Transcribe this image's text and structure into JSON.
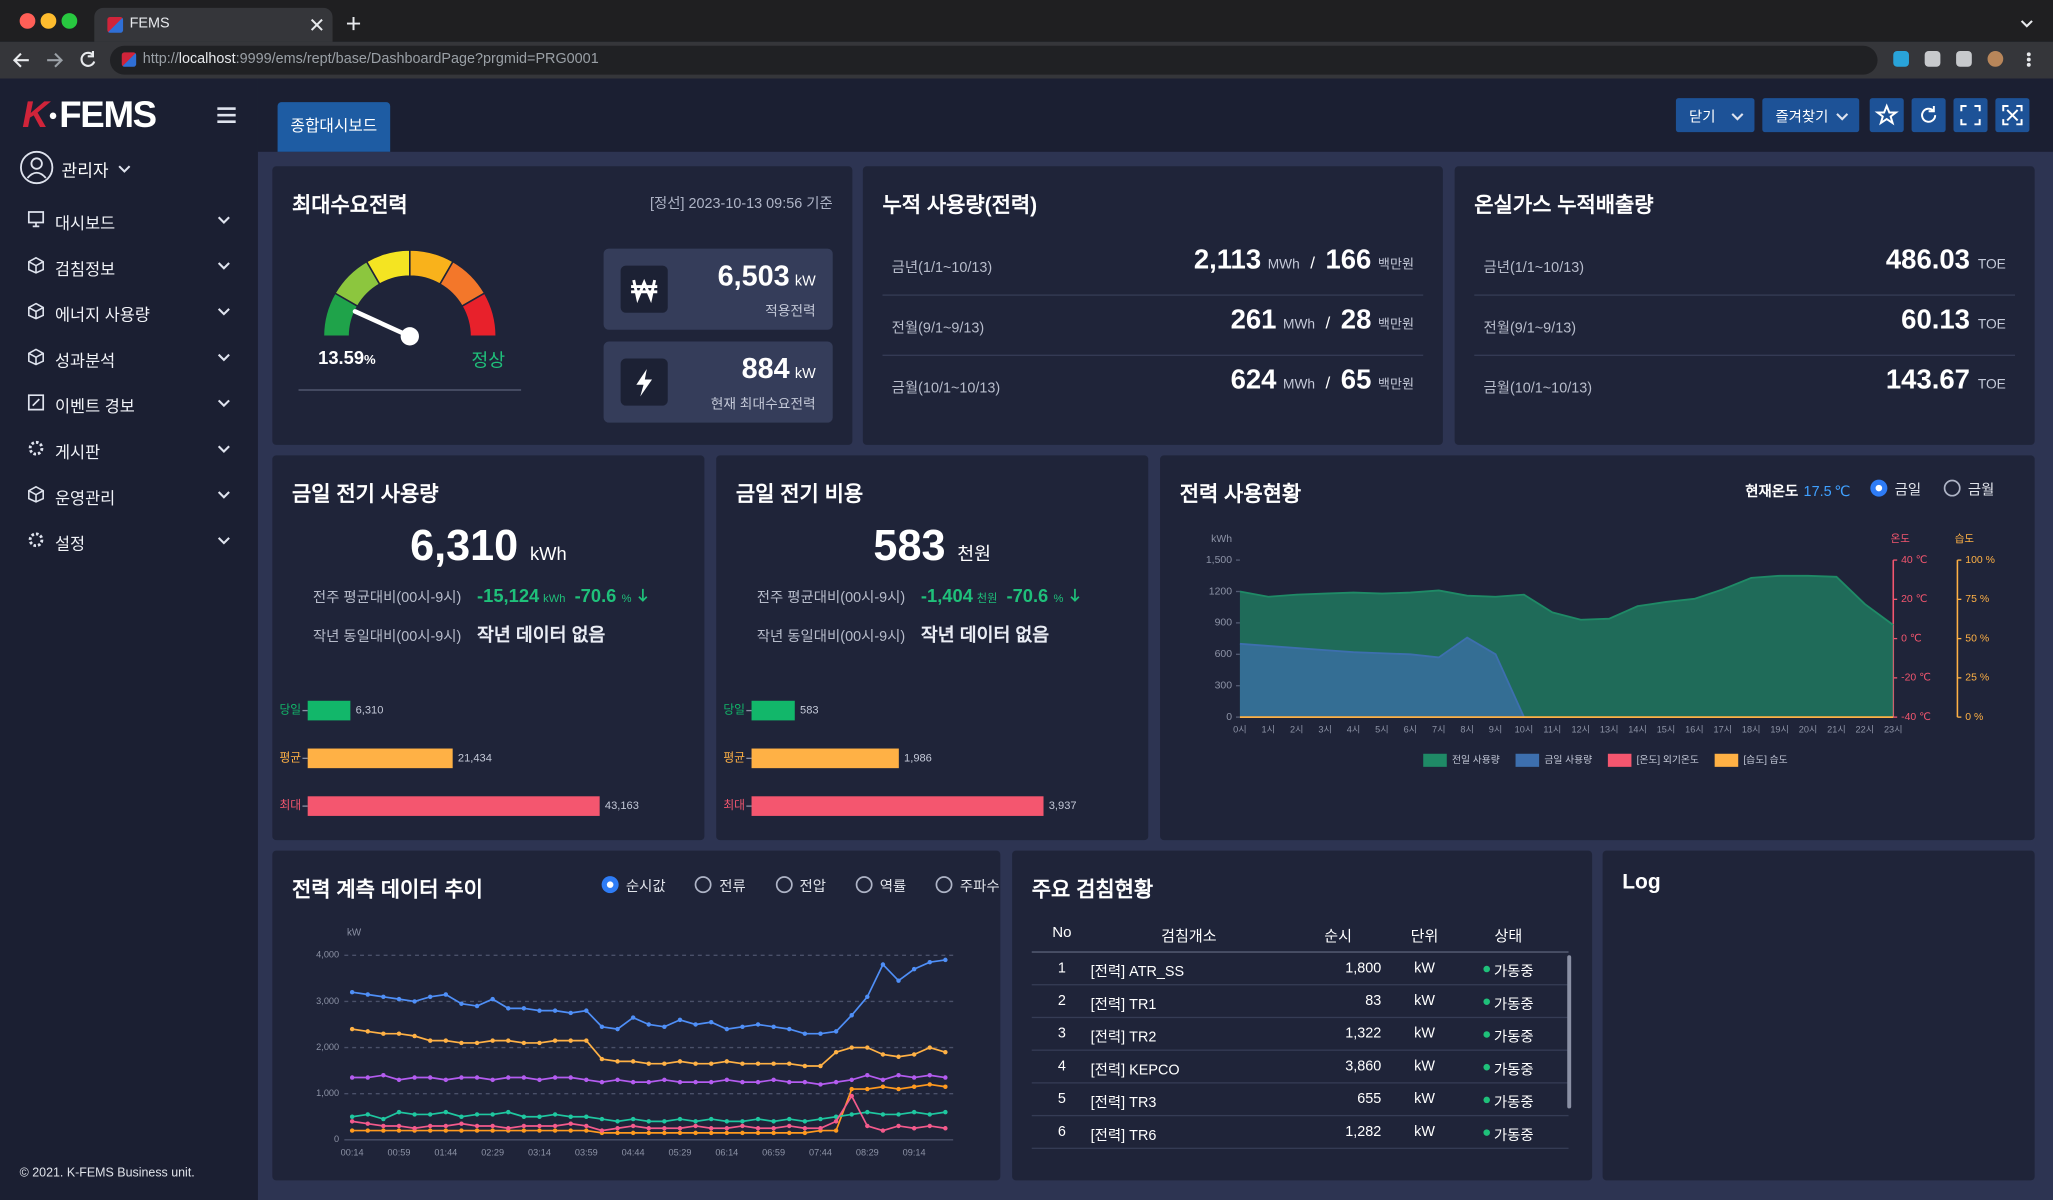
{
  "browser": {
    "tab_title": "FEMS",
    "url_scheme": "http://",
    "url_host": "localhost",
    "url_path": ":9999/ems/rept/base/DashboardPage?prgmid=PRG0001"
  },
  "sidebar": {
    "logo_mark": "K",
    "logo_text": "FEMS",
    "user": "관리자",
    "menu": [
      "대시보드",
      "검침정보",
      "에너지 사용량",
      "성과분석",
      "이벤트 경보",
      "게시판",
      "운영관리",
      "설정"
    ],
    "footer": "© 2021. K-FEMS Business unit."
  },
  "header": {
    "tab": "종합대시보드",
    "buttons": [
      "닫기",
      "즐겨찾기"
    ]
  },
  "peak_demand": {
    "title": "최대수요전력",
    "basis": "[정선] 2023-10-13 09:56 기준",
    "gauge": {
      "value": 13.59,
      "unit": "%",
      "status": "정상",
      "range": [
        0,
        100
      ]
    },
    "cards": [
      {
        "value": 6503,
        "value_label": "6,503",
        "unit": "kW",
        "label": "적용전력"
      },
      {
        "value": 884,
        "unit": "kW",
        "label": "현재 최대수요전력"
      }
    ]
  },
  "cumulative": {
    "title": "누적 사용량(전력)",
    "separator": "/",
    "rows": [
      {
        "label": "금년(1/1~10/13)",
        "usage": 2113,
        "usage_label": "2,113",
        "usage_unit": "MWh",
        "cost": 166,
        "cost_unit": "백만원"
      },
      {
        "label": "전월(9/1~9/13)",
        "usage": 261,
        "usage_unit": "MWh",
        "cost": 28,
        "cost_unit": "백만원"
      },
      {
        "label": "금월(10/1~10/13)",
        "usage": 624,
        "usage_unit": "MWh",
        "cost": 65,
        "cost_unit": "백만원"
      }
    ]
  },
  "ghg": {
    "title": "온실가스 누적배출량",
    "unit": "TOE",
    "rows": [
      {
        "label": "금년(1/1~10/13)",
        "value": 486.03
      },
      {
        "label": "전월(9/1~9/13)",
        "value": 60.13
      },
      {
        "label": "금월(10/1~10/13)",
        "value": 143.67
      }
    ]
  },
  "usage_today": {
    "title": "금일 전기 사용량",
    "value": 6310,
    "value_label": "6,310",
    "unit": "kWh",
    "weekly": {
      "label": "전주 평균대비(00시-9시)",
      "diff": -15124,
      "diff_label": "-15,124",
      "diff_unit": "kWh",
      "pct": -70.6,
      "pct_unit": "%"
    },
    "yearly": {
      "label": "작년 동일대비(00시-9시)",
      "text": "작년 데이터 없음"
    },
    "chart_data": {
      "type": "hbar",
      "categories": [
        "당일",
        "평균",
        "최대"
      ],
      "values": [
        6310,
        21434,
        43163
      ],
      "value_labels": [
        "6,310",
        "21,434",
        "43,163"
      ],
      "colors": [
        "#12b76a",
        "#ffb145",
        "#f4566f"
      ]
    }
  },
  "cost_today": {
    "title": "금일 전기 비용",
    "value": 583,
    "unit": "천원",
    "weekly": {
      "label": "전주 평균대비(00시-9시)",
      "diff": -1404,
      "diff_label": "-1,404",
      "diff_unit": "천원",
      "pct": -70.6,
      "pct_unit": "%"
    },
    "yearly": {
      "label": "작년 동일대비(00시-9시)",
      "text": "작년 데이터 없음"
    },
    "chart_data": {
      "type": "hbar",
      "categories": [
        "당일",
        "평균",
        "최대"
      ],
      "values": [
        583,
        1986,
        3937
      ],
      "value_labels": [
        "583",
        "1,986",
        "3,937"
      ],
      "colors": [
        "#12b76a",
        "#ffb145",
        "#f4566f"
      ]
    }
  },
  "power_status": {
    "title": "전력 사용현황",
    "temp_label": "현재온도",
    "temp": 17.5,
    "temp_unit": "℃",
    "options": [
      "금일",
      "금월"
    ],
    "selected": 0,
    "chart_data": {
      "type": "area",
      "x": [
        "0시",
        "1시",
        "2시",
        "3시",
        "4시",
        "5시",
        "6시",
        "7시",
        "8시",
        "9시",
        "10시",
        "11시",
        "12시",
        "13시",
        "14시",
        "15시",
        "16시",
        "17시",
        "18시",
        "19시",
        "20시",
        "21시",
        "22시",
        "23시"
      ],
      "y_label": "kWh",
      "ylim": [
        0,
        1500
      ],
      "yticks": [
        0,
        300,
        600,
        900,
        1200,
        {
          "value": 1500,
          "label": "1,500"
        }
      ],
      "y2_label": "온도",
      "y2lim": [
        -40,
        40
      ],
      "y2ticks": [
        {
          "value": -40,
          "label": "-40 ℃"
        },
        {
          "value": -20,
          "label": "-20 ℃"
        },
        {
          "value": 0,
          "label": "0 ℃"
        },
        {
          "value": 20,
          "label": "20 ℃"
        },
        {
          "value": 40,
          "label": "40 ℃"
        }
      ],
      "y3_label": "습도",
      "y3lim": [
        0,
        100
      ],
      "y3ticks": [
        {
          "value": 0,
          "label": "0 %"
        },
        {
          "value": 25,
          "label": "25 %"
        },
        {
          "value": 50,
          "label": "50 %"
        },
        {
          "value": 75,
          "label": "75 %"
        },
        {
          "value": 100,
          "label": "100 %"
        }
      ],
      "series": [
        {
          "name": "전일 사용량",
          "color": "#1f8a66",
          "values": [
            1200,
            1150,
            1170,
            1180,
            1190,
            1180,
            1190,
            1210,
            1160,
            1150,
            1170,
            1000,
            930,
            940,
            1060,
            1100,
            1130,
            1220,
            1330,
            1350,
            1350,
            1340,
            1080,
            880
          ]
        },
        {
          "name": "금일 사용량",
          "color": "#3d6fae",
          "values": [
            700,
            680,
            660,
            640,
            620,
            610,
            600,
            570,
            760,
            600,
            0,
            null,
            null,
            null,
            null,
            null,
            null,
            null,
            null,
            null,
            null,
            null,
            null,
            null
          ]
        },
        {
          "name": "[온도] 외기온도",
          "color": "#f4566f",
          "axis": "y2",
          "values": [
            null,
            null,
            null,
            null,
            null,
            null,
            null,
            null,
            null,
            null,
            null,
            null,
            null,
            null,
            null,
            null,
            null,
            null,
            null,
            null,
            null,
            null,
            null,
            null
          ]
        },
        {
          "name": "[습도] 습도",
          "color": "#ffb145",
          "axis": "y3",
          "values": [
            0,
            0,
            0,
            0,
            0,
            0,
            0,
            0,
            0,
            0,
            0,
            0,
            0,
            0,
            0,
            0,
            0,
            0,
            0,
            0,
            0,
            0,
            0,
            0
          ]
        }
      ]
    }
  },
  "trend": {
    "title": "전력 계측 데이터 추이",
    "options": [
      "순시값",
      "전류",
      "전압",
      "역률",
      "주파수"
    ],
    "selected": 0,
    "chart_data": {
      "type": "line",
      "categories": [
        "00:14",
        null,
        null,
        "00:59",
        null,
        null,
        "01:44",
        null,
        null,
        "02:29",
        null,
        null,
        "03:14",
        null,
        null,
        "03:59",
        null,
        null,
        "04:44",
        null,
        null,
        "05:29",
        null,
        null,
        "06:14",
        null,
        null,
        "06:59",
        null,
        null,
        "07:44",
        null,
        null,
        "08:29",
        null,
        null,
        "09:14",
        null,
        null
      ],
      "y_label": "kW",
      "ylim": [
        0,
        4000
      ],
      "grid": true,
      "yticks": [
        0,
        {
          "value": 1000,
          "label": "1,000"
        },
        {
          "value": 2000,
          "label": "2,000"
        },
        {
          "value": 3000,
          "label": "3,000"
        },
        {
          "value": 4000,
          "label": "4,000"
        }
      ],
      "series": [
        {
          "color": "#4f8ff7",
          "values": [
            3200,
            3150,
            3100,
            3050,
            3000,
            3100,
            3150,
            2950,
            2900,
            3050,
            2850,
            2850,
            2800,
            2800,
            2750,
            2800,
            2450,
            2400,
            2650,
            2500,
            2450,
            2600,
            2500,
            2550,
            2400,
            2450,
            2500,
            2450,
            2400,
            2300,
            2300,
            2350,
            2700,
            3100,
            3800,
            3450,
            3700,
            3850,
            3900
          ]
        },
        {
          "color": "#ffb145",
          "values": [
            2400,
            2350,
            2300,
            2300,
            2250,
            2150,
            2150,
            2100,
            2100,
            2150,
            2150,
            2100,
            2100,
            2150,
            2150,
            2150,
            1750,
            1700,
            1700,
            1650,
            1650,
            1700,
            1650,
            1650,
            1700,
            1650,
            1650,
            1650,
            1650,
            1600,
            1600,
            1900,
            2000,
            2000,
            1850,
            1800,
            1850,
            2000,
            1900
          ]
        },
        {
          "color": "#b45cf0",
          "values": [
            1350,
            1350,
            1400,
            1300,
            1350,
            1350,
            1300,
            1350,
            1350,
            1300,
            1350,
            1350,
            1300,
            1350,
            1350,
            1300,
            1250,
            1300,
            1250,
            1250,
            1300,
            1250,
            1250,
            1250,
            1300,
            1250,
            1250,
            1300,
            1250,
            1250,
            1200,
            1250,
            1300,
            1400,
            1300,
            1400,
            1350,
            1400,
            1350
          ]
        },
        {
          "color": "#ff9a1f",
          "values": [
            200,
            200,
            200,
            200,
            200,
            200,
            200,
            200,
            200,
            200,
            200,
            200,
            200,
            200,
            200,
            200,
            150,
            150,
            150,
            150,
            150,
            150,
            150,
            150,
            150,
            150,
            150,
            150,
            150,
            150,
            200,
            200,
            1100,
            1100,
            1150,
            1100,
            1150,
            1200,
            1150
          ]
        },
        {
          "color": "#1fc7a0",
          "values": [
            500,
            550,
            450,
            600,
            550,
            550,
            600,
            500,
            550,
            550,
            600,
            500,
            500,
            550,
            500,
            500,
            450,
            400,
            450,
            400,
            400,
            450,
            400,
            450,
            400,
            400,
            450,
            400,
            450,
            400,
            450,
            500,
            550,
            600,
            550,
            550,
            600,
            550,
            600
          ]
        },
        {
          "color": "#f45a8c",
          "values": [
            400,
            350,
            300,
            300,
            250,
            300,
            300,
            350,
            300,
            300,
            250,
            300,
            300,
            300,
            350,
            300,
            200,
            250,
            300,
            250,
            250,
            250,
            300,
            250,
            250,
            300,
            250,
            250,
            300,
            250,
            250,
            400,
            950,
            300,
            200,
            300,
            250,
            300,
            250
          ]
        }
      ]
    }
  },
  "meter_table": {
    "title": "주요 검침현황",
    "columns": [
      "No",
      "검침개소",
      "순시",
      "단위",
      "상태"
    ],
    "rows": [
      [
        1,
        "[전력] ATR_SS",
        "1,800",
        "kW",
        "가동중"
      ],
      [
        2,
        "[전력] TR1",
        "83",
        "kW",
        "가동중"
      ],
      [
        3,
        "[전력] TR2",
        "1,322",
        "kW",
        "가동중"
      ],
      [
        4,
        "[전력] KEPCO",
        "3,860",
        "kW",
        "가동중"
      ],
      [
        5,
        "[전력] TR3",
        "655",
        "kW",
        "가동중"
      ],
      [
        6,
        "[전력] TR6",
        "1,282",
        "kW",
        "가동중"
      ]
    ]
  },
  "log": {
    "title": "Log"
  }
}
